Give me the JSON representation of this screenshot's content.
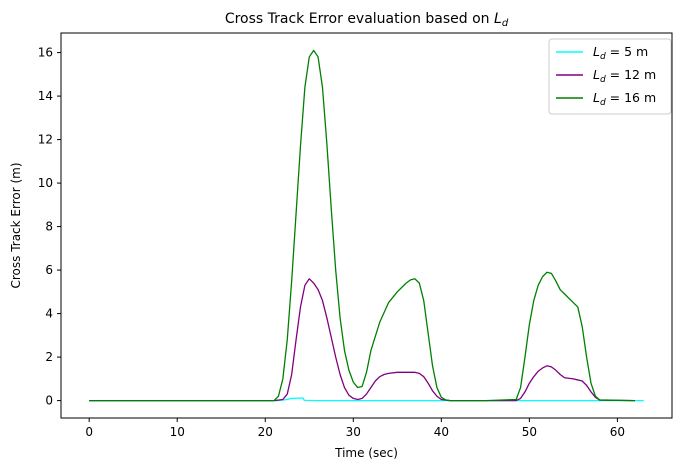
{
  "chart_data": {
    "type": "line",
    "title": "Cross Track Error evaluation based on",
    "title_math": "L",
    "title_math_sub": "d",
    "xlabel": "Time (sec)",
    "ylabel": "Cross Track Error (m)",
    "xlim": [
      -3.2,
      66.2
    ],
    "ylim": [
      -0.8,
      16.9
    ],
    "xticks": [
      0,
      10,
      20,
      30,
      40,
      50,
      60
    ],
    "yticks": [
      0,
      2,
      4,
      6,
      8,
      10,
      12,
      14,
      16
    ],
    "grid": false,
    "legend_position": "upper right",
    "series": [
      {
        "name": "= 5 m",
        "name_math": "L",
        "name_math_sub": "d",
        "color": "#00ffff",
        "x": [
          0,
          21.5,
          22.5,
          23.0,
          24.3,
          24.4,
          24.6,
          26,
          30,
          40,
          50,
          55,
          60,
          63
        ],
        "y": [
          0,
          0,
          0.05,
          0.1,
          0.12,
          0.02,
          0.01,
          0,
          0,
          0,
          0,
          0,
          0,
          0
        ]
      },
      {
        "name": "= 12 m",
        "name_math": "L",
        "name_math_sub": "d",
        "color": "#800080",
        "x": [
          0,
          21.0,
          22.0,
          22.5,
          23.0,
          23.5,
          24.0,
          24.5,
          25.0,
          25.5,
          26.0,
          26.5,
          27.0,
          27.5,
          28.0,
          28.5,
          29.0,
          29.5,
          30.0,
          30.5,
          31.0,
          31.5,
          32.0,
          32.5,
          33.0,
          33.5,
          34.0,
          35.0,
          36.0,
          37.0,
          37.5,
          38.0,
          38.5,
          39.0,
          39.5,
          40.0,
          41.0,
          45.0,
          48.5,
          49.0,
          49.5,
          50.0,
          50.5,
          51.0,
          51.5,
          52.0,
          52.5,
          53.0,
          53.5,
          54.0,
          55.0,
          55.5,
          56.0,
          56.5,
          57.0,
          57.5,
          58.0,
          62.0
        ],
        "y": [
          0,
          0,
          0.05,
          0.3,
          1.2,
          2.8,
          4.3,
          5.3,
          5.6,
          5.4,
          5.1,
          4.6,
          3.8,
          2.9,
          2.0,
          1.2,
          0.6,
          0.25,
          0.1,
          0.05,
          0.1,
          0.3,
          0.6,
          0.9,
          1.1,
          1.2,
          1.25,
          1.3,
          1.3,
          1.3,
          1.25,
          1.1,
          0.8,
          0.45,
          0.2,
          0.05,
          0,
          0,
          0,
          0.1,
          0.4,
          0.8,
          1.1,
          1.35,
          1.5,
          1.6,
          1.55,
          1.4,
          1.2,
          1.05,
          1.0,
          0.95,
          0.9,
          0.7,
          0.4,
          0.15,
          0.02,
          0
        ]
      },
      {
        "name": "= 16 m",
        "name_math": "L",
        "name_math_sub": "d",
        "color": "#008000",
        "x": [
          0,
          21.0,
          21.5,
          22.0,
          22.5,
          23.0,
          23.5,
          24.0,
          24.5,
          25.0,
          25.5,
          26.0,
          26.5,
          27.0,
          27.5,
          28.0,
          28.5,
          29.0,
          29.5,
          30.0,
          30.5,
          31.0,
          31.5,
          32.0,
          33.0,
          34.0,
          35.0,
          36.0,
          36.5,
          37.0,
          37.5,
          38.0,
          38.5,
          39.0,
          39.5,
          40.0,
          40.5,
          41.0,
          45.0,
          48.5,
          49.0,
          49.5,
          50.0,
          50.5,
          51.0,
          51.5,
          52.0,
          52.5,
          53.0,
          53.5,
          54.0,
          54.5,
          55.0,
          55.5,
          56.0,
          56.5,
          57.0,
          57.5,
          58.0,
          62.0
        ],
        "y": [
          0,
          0,
          0.2,
          1.0,
          2.8,
          5.5,
          8.6,
          11.7,
          14.4,
          15.8,
          16.1,
          15.8,
          14.4,
          11.8,
          8.8,
          6.0,
          3.8,
          2.3,
          1.4,
          0.85,
          0.6,
          0.65,
          1.3,
          2.3,
          3.6,
          4.5,
          5.0,
          5.4,
          5.55,
          5.6,
          5.4,
          4.6,
          3.1,
          1.6,
          0.6,
          0.15,
          0.03,
          0,
          0,
          0.05,
          0.6,
          2.0,
          3.5,
          4.6,
          5.3,
          5.7,
          5.9,
          5.85,
          5.5,
          5.1,
          4.9,
          4.7,
          4.5,
          4.3,
          3.4,
          2.0,
          0.8,
          0.2,
          0.03,
          0
        ]
      }
    ]
  }
}
